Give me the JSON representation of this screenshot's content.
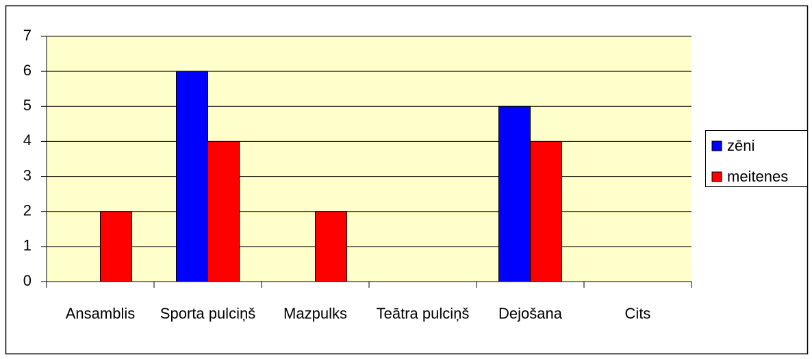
{
  "chart_data": {
    "type": "bar",
    "categories": [
      "Ansamblis",
      "Sporta pulciņš",
      "Mazpulks",
      "Teātra pulciņš",
      "Dejošana",
      "Cits"
    ],
    "series": [
      {
        "name": "zēni",
        "color": "#0000ff",
        "values": [
          0,
          6,
          0,
          0,
          5,
          0
        ]
      },
      {
        "name": "meitenes",
        "color": "#ff0000",
        "values": [
          2,
          4,
          2,
          0,
          4,
          0
        ]
      }
    ],
    "ylim": [
      0,
      7
    ],
    "yticks": [
      0,
      1,
      2,
      3,
      4,
      5,
      6,
      7
    ],
    "grid": true,
    "legend": "right"
  }
}
